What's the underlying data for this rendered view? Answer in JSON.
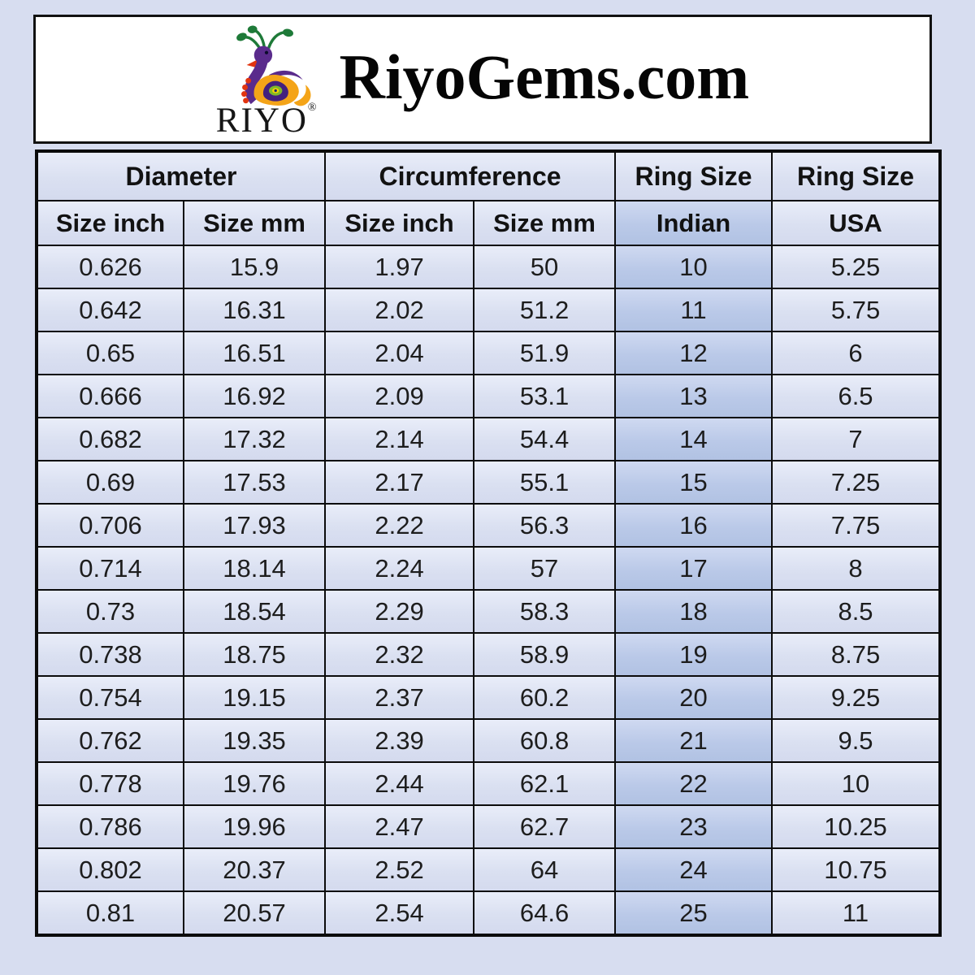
{
  "header": {
    "logo_name": "riyo-peacock-logo",
    "brand_word": "RIYO",
    "registered_mark": "®",
    "site_title": "RiyoGems.com"
  },
  "table": {
    "group_headers": [
      {
        "label": "Diameter",
        "span": 2
      },
      {
        "label": "Circumference",
        "span": 2
      },
      {
        "label": "Ring Size",
        "span": 1
      },
      {
        "label": "Ring Size",
        "span": 1
      }
    ],
    "sub_headers": [
      "Size inch",
      "Size mm",
      "Size inch",
      "Size mm",
      "Indian",
      "USA"
    ],
    "highlighted_column": "Indian"
  },
  "chart_data": {
    "type": "table",
    "columns": [
      "Diameter Size inch",
      "Diameter Size mm",
      "Circumference Size inch",
      "Circumference Size mm",
      "Ring Size Indian",
      "Ring Size USA"
    ],
    "rows": [
      [
        "0.626",
        "15.9",
        "1.97",
        "50",
        "10",
        "5.25"
      ],
      [
        "0.642",
        "16.31",
        "2.02",
        "51.2",
        "11",
        "5.75"
      ],
      [
        "0.65",
        "16.51",
        "2.04",
        "51.9",
        "12",
        "6"
      ],
      [
        "0.666",
        "16.92",
        "2.09",
        "53.1",
        "13",
        "6.5"
      ],
      [
        "0.682",
        "17.32",
        "2.14",
        "54.4",
        "14",
        "7"
      ],
      [
        "0.69",
        "17.53",
        "2.17",
        "55.1",
        "15",
        "7.25"
      ],
      [
        "0.706",
        "17.93",
        "2.22",
        "56.3",
        "16",
        "7.75"
      ],
      [
        "0.714",
        "18.14",
        "2.24",
        "57",
        "17",
        "8"
      ],
      [
        "0.73",
        "18.54",
        "2.29",
        "58.3",
        "18",
        "8.5"
      ],
      [
        "0.738",
        "18.75",
        "2.32",
        "58.9",
        "19",
        "8.75"
      ],
      [
        "0.754",
        "19.15",
        "2.37",
        "60.2",
        "20",
        "9.25"
      ],
      [
        "0.762",
        "19.35",
        "2.39",
        "60.8",
        "21",
        "9.5"
      ],
      [
        "0.778",
        "19.76",
        "2.44",
        "62.1",
        "22",
        "10"
      ],
      [
        "0.786",
        "19.96",
        "2.47",
        "62.7",
        "23",
        "10.25"
      ],
      [
        "0.802",
        "20.37",
        "2.52",
        "64",
        "24",
        "10.75"
      ],
      [
        "0.81",
        "20.57",
        "2.54",
        "64.6",
        "25",
        "11"
      ]
    ]
  },
  "colors": {
    "page_background": "#d7ddf0",
    "header_box_background": "#ffffff",
    "cell_light": "#dde2f2",
    "cell_indian_highlight": "#bccbe9",
    "border": "#0b0b0b",
    "text": "#1d1d1d",
    "logo_purple": "#5a2b8c",
    "logo_orange": "#f4a418",
    "logo_green": "#1e7a38",
    "logo_red": "#e23510"
  }
}
